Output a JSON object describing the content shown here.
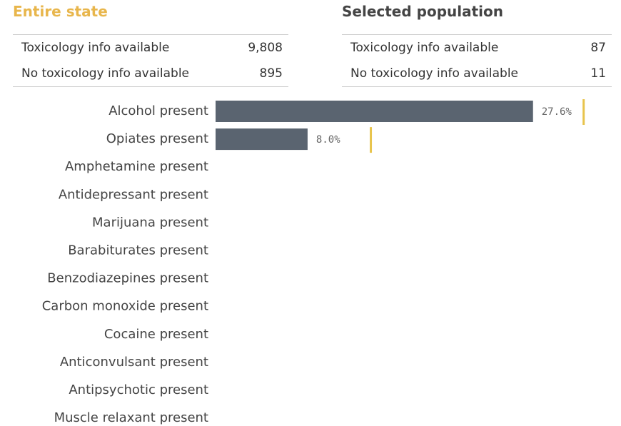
{
  "entire_state": {
    "title": "Entire state",
    "rows": [
      {
        "label": "Toxicology info available",
        "value": "9,808"
      },
      {
        "label": "No toxicology info available",
        "value": "895"
      }
    ]
  },
  "selected_population": {
    "title": "Selected population",
    "rows": [
      {
        "label": "Toxicology info available",
        "value": "87"
      },
      {
        "label": "No toxicology info available",
        "value": "11"
      }
    ]
  },
  "chart_data": {
    "type": "bar",
    "orientation": "horizontal",
    "categories": [
      "Alcohol present",
      "Opiates present",
      "Amphetamine present",
      "Antidepressant present",
      "Marijuana present",
      "Barabiturates present",
      "Benzodiazepines present",
      "Carbon monoxide present",
      "Cocaine present",
      "Anticonvulsant present",
      "Antipsychotic present",
      "Muscle relaxant present"
    ],
    "values": [
      27.6,
      8.0,
      null,
      null,
      null,
      null,
      null,
      null,
      null,
      null,
      null,
      null
    ],
    "value_labels": [
      "27.6%",
      "8.0%",
      null,
      null,
      null,
      null,
      null,
      null,
      null,
      null,
      null,
      null
    ],
    "color": "#5a6470",
    "reference_values": [
      32.0,
      13.5,
      null,
      null,
      null,
      null,
      null,
      null,
      null,
      null,
      null,
      null
    ],
    "reference_color": "#e8c44c",
    "xlim": [
      0,
      35
    ]
  }
}
